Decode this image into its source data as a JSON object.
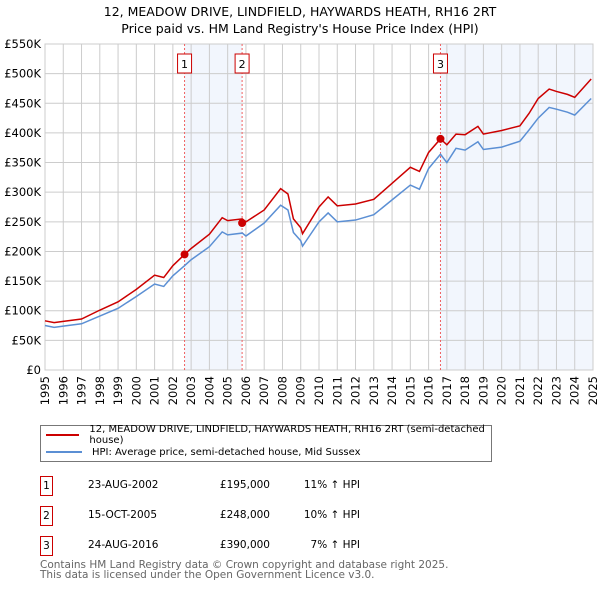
{
  "chart_data": {
    "type": "line",
    "title": "12, MEADOW DRIVE, LINDFIELD, HAYWARDS HEATH, RH16 2RT",
    "subtitle": "Price paid vs. HM Land Registry's House Price Index (HPI)",
    "xlim": [
      1995,
      2025
    ],
    "ylim": [
      0,
      550000
    ],
    "x_ticks": [
      "1995",
      "1996",
      "1997",
      "1998",
      "1999",
      "2000",
      "2001",
      "2002",
      "2003",
      "2004",
      "2005",
      "2006",
      "2007",
      "2008",
      "2009",
      "2010",
      "2011",
      "2012",
      "2013",
      "2014",
      "2015",
      "2016",
      "2017",
      "2018",
      "2019",
      "2020",
      "2021",
      "2022",
      "2023",
      "2024",
      "2025"
    ],
    "y_ticks": [
      {
        "v": 0,
        "label": "£0"
      },
      {
        "v": 50000,
        "label": "£50K"
      },
      {
        "v": 100000,
        "label": "£100K"
      },
      {
        "v": 150000,
        "label": "£150K"
      },
      {
        "v": 200000,
        "label": "£200K"
      },
      {
        "v": 250000,
        "label": "£250K"
      },
      {
        "v": 300000,
        "label": "£300K"
      },
      {
        "v": 350000,
        "label": "£350K"
      },
      {
        "v": 400000,
        "label": "£400K"
      },
      {
        "v": 450000,
        "label": "£450K"
      },
      {
        "v": 500000,
        "label": "£500K"
      },
      {
        "v": 550000,
        "label": "£550K"
      }
    ],
    "grid": true,
    "series": [
      {
        "name": "12, MEADOW DRIVE, LINDFIELD, HAYWARDS HEATH, RH16 2RT (semi-detached house)",
        "color": "#cc0000",
        "x": [
          1995,
          1995.5,
          1996,
          1997,
          1998,
          1999,
          2000,
          2001,
          2001.5,
          2002,
          2002.64,
          2003,
          2004,
          2004.7,
          2005,
          2005.8,
          2006,
          2007,
          2007.9,
          2008.3,
          2008.6,
          2009.0,
          2009.1,
          2010,
          2010.5,
          2011,
          2012,
          2013,
          2014,
          2015,
          2015.5,
          2016,
          2016.65,
          2017,
          2017.5,
          2018,
          2018.7,
          2019,
          2020,
          2021,
          2021.5,
          2022,
          2022.6,
          2023,
          2023.6,
          2024,
          2024.9
        ],
        "y": [
          83000,
          80000,
          82000,
          86000,
          101000,
          115000,
          136000,
          160000,
          156000,
          176000,
          195000,
          205000,
          229000,
          257000,
          252000,
          255000,
          250000,
          270000,
          306000,
          297000,
          255000,
          240000,
          230000,
          275000,
          292000,
          277000,
          280000,
          288000,
          315000,
          342000,
          335000,
          367000,
          390000,
          380000,
          398000,
          397000,
          411000,
          398000,
          404000,
          412000,
          433000,
          458000,
          474000,
          470000,
          465000,
          460000,
          491000
        ]
      },
      {
        "name": "HPI: Average price, semi-detached house, Mid Sussex",
        "color": "#5b8fd4",
        "x": [
          1995,
          1995.5,
          1996,
          1997,
          1998,
          1999,
          2000,
          2001,
          2001.5,
          2002,
          2002.64,
          2003,
          2004,
          2004.7,
          2005,
          2005.8,
          2006,
          2007,
          2007.9,
          2008.3,
          2008.6,
          2009.0,
          2009.1,
          2010,
          2010.5,
          2011,
          2012,
          2013,
          2014,
          2015,
          2015.5,
          2016,
          2016.65,
          2017,
          2017.5,
          2018,
          2018.7,
          2019,
          2020,
          2021,
          2021.5,
          2022,
          2022.6,
          2023,
          2023.6,
          2024,
          2024.9
        ],
        "y": [
          75000,
          72000,
          74000,
          78000,
          91000,
          104000,
          124000,
          145000,
          141000,
          159000,
          176000,
          186000,
          208000,
          233000,
          228000,
          231000,
          226000,
          248000,
          278000,
          270000,
          232000,
          218000,
          209000,
          250000,
          265000,
          250000,
          253000,
          262000,
          287000,
          312000,
          305000,
          340000,
          364000,
          350000,
          374000,
          371000,
          385000,
          372000,
          376000,
          386000,
          405000,
          425000,
          443000,
          440000,
          435000,
          430000,
          458000
        ]
      }
    ],
    "sales": [
      {
        "n": "1",
        "x": 2002.64,
        "y": 195000,
        "date": "23-AUG-2002",
        "price": "£195,000",
        "hpi": "11% ↑ HPI"
      },
      {
        "n": "2",
        "x": 2005.79,
        "y": 248000,
        "date": "15-OCT-2005",
        "price": "£248,000",
        "hpi": "10% ↑ HPI"
      },
      {
        "n": "3",
        "x": 2016.65,
        "y": 390000,
        "date": "24-AUG-2016",
        "price": "£390,000",
        "hpi": "7% ↑ HPI"
      }
    ],
    "shaded": [
      [
        2002.64,
        2005.79
      ],
      [
        2016.65,
        2025
      ]
    ]
  },
  "footer": {
    "line1": "Contains HM Land Registry data © Crown copyright and database right 2025.",
    "line2": "This data is licensed under the Open Government Licence v3.0."
  }
}
